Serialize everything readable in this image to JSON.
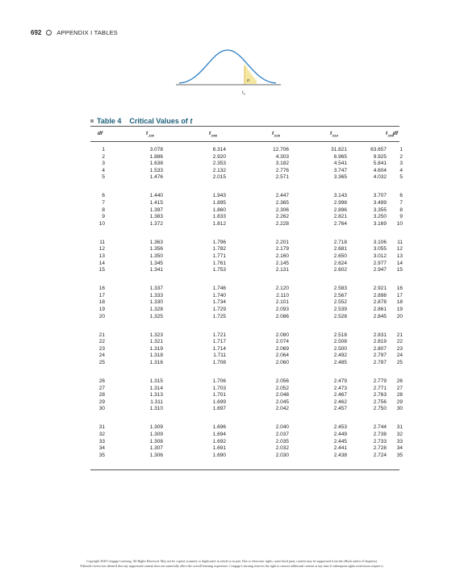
{
  "header": {
    "page_number": "692",
    "section": "APPENDIX I TABLES"
  },
  "figure": {
    "alpha_label": "a",
    "t_label": "t",
    "t_sub": "α"
  },
  "table": {
    "number": "Table 4",
    "title": "Critical Values of ",
    "title_var": "t",
    "columns": [
      {
        "main": "df",
        "sub": ""
      },
      {
        "main": "t",
        "sub": ".100"
      },
      {
        "main": "t",
        "sub": ".050"
      },
      {
        "main": "t",
        "sub": ".025"
      },
      {
        "main": "t",
        "sub": ".010"
      },
      {
        "main": "t",
        "sub": ".005"
      },
      {
        "main": "df",
        "sub": ""
      }
    ],
    "rows": [
      [
        "1",
        "3.078",
        "6.314",
        "12.706",
        "31.821",
        "63.657",
        "1"
      ],
      [
        "2",
        "1.886",
        "2.920",
        "4.303",
        "6.965",
        "9.925",
        "2"
      ],
      [
        "3",
        "1.638",
        "2.353",
        "3.182",
        "4.541",
        "5.841",
        "3"
      ],
      [
        "4",
        "1.533",
        "2.132",
        "2.776",
        "3.747",
        "4.604",
        "4"
      ],
      [
        "5",
        "1.476",
        "2.015",
        "2.571",
        "3.365",
        "4.032",
        "5"
      ],
      [
        "6",
        "1.440",
        "1.943",
        "2.447",
        "3.143",
        "3.707",
        "6"
      ],
      [
        "7",
        "1.415",
        "1.895",
        "2.365",
        "2.998",
        "3.499",
        "7"
      ],
      [
        "8",
        "1.397",
        "1.860",
        "2.306",
        "2.896",
        "3.355",
        "8"
      ],
      [
        "9",
        "1.383",
        "1.833",
        "2.262",
        "2.821",
        "3.250",
        "9"
      ],
      [
        "10",
        "1.372",
        "1.812",
        "2.228",
        "2.764",
        "3.169",
        "10"
      ],
      [
        "11",
        "1.363",
        "1.796",
        "2.201",
        "2.718",
        "3.106",
        "11"
      ],
      [
        "12",
        "1.356",
        "1.782",
        "2.179",
        "2.681",
        "3.055",
        "12"
      ],
      [
        "13",
        "1.350",
        "1.771",
        "2.160",
        "2.650",
        "3.012",
        "13"
      ],
      [
        "14",
        "1.345",
        "1.761",
        "2.145",
        "2.624",
        "2.977",
        "14"
      ],
      [
        "15",
        "1.341",
        "1.753",
        "2.131",
        "2.602",
        "2.947",
        "15"
      ],
      [
        "16",
        "1.337",
        "1.746",
        "2.120",
        "2.583",
        "2.921",
        "16"
      ],
      [
        "17",
        "1.333",
        "1.740",
        "2.110",
        "2.567",
        "2.898",
        "17"
      ],
      [
        "18",
        "1.330",
        "1.734",
        "2.101",
        "2.552",
        "2.878",
        "18"
      ],
      [
        "19",
        "1.328",
        "1.729",
        "2.093",
        "2.539",
        "2.861",
        "19"
      ],
      [
        "20",
        "1.325",
        "1.725",
        "2.086",
        "2.528",
        "2.845",
        "20"
      ],
      [
        "21",
        "1.323",
        "1.721",
        "2.080",
        "2.518",
        "2.831",
        "21"
      ],
      [
        "22",
        "1.321",
        "1.717",
        "2.074",
        "2.508",
        "2.819",
        "22"
      ],
      [
        "23",
        "1.319",
        "1.714",
        "2.069",
        "2.500",
        "2.807",
        "23"
      ],
      [
        "24",
        "1.318",
        "1.711",
        "2.064",
        "2.492",
        "2.797",
        "24"
      ],
      [
        "25",
        "1.316",
        "1.708",
        "2.060",
        "2.485",
        "2.787",
        "25"
      ],
      [
        "26",
        "1.315",
        "1.706",
        "2.056",
        "2.479",
        "2.779",
        "26"
      ],
      [
        "27",
        "1.314",
        "1.703",
        "2.052",
        "2.473",
        "2.771",
        "27"
      ],
      [
        "28",
        "1.313",
        "1.701",
        "2.048",
        "2.467",
        "2.763",
        "28"
      ],
      [
        "29",
        "1.311",
        "1.699",
        "2.045",
        "2.462",
        "2.756",
        "29"
      ],
      [
        "30",
        "1.310",
        "1.697",
        "2.042",
        "2.457",
        "2.750",
        "30"
      ],
      [
        "31",
        "1.309",
        "1.696",
        "2.040",
        "2.453",
        "2.744",
        "31"
      ],
      [
        "32",
        "1.309",
        "1.694",
        "2.037",
        "2.449",
        "2.738",
        "32"
      ],
      [
        "33",
        "1.308",
        "1.692",
        "2.035",
        "2.445",
        "2.733",
        "33"
      ],
      [
        "34",
        "1.307",
        "1.691",
        "2.032",
        "2.441",
        "2.728",
        "34"
      ],
      [
        "35",
        "1.306",
        "1.690",
        "2.030",
        "2.438",
        "2.724",
        "35"
      ]
    ]
  },
  "footer": {
    "line1": "Copyright 2020 Cengage Learning. All Rights Reserved. May not be copied, scanned, or duplicated, in whole or in part. Due to electronic rights, some third party content may be suppressed from the eBook and/or eChapter(s).",
    "line2": "Editorial review has deemed that any suppressed content does not materially affect the overall learning experience. Cengage Learning reserves the right to remove additional content at any time if subsequent rights restrictions require it."
  },
  "colors": {
    "accent": "#1d5e7a",
    "curve": "#2b7fc3",
    "shade": "#f5e7a0"
  }
}
